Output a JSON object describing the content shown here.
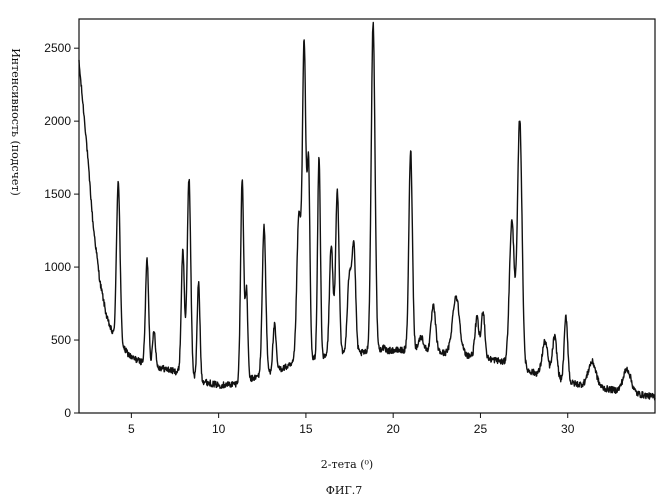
{
  "figure": {
    "caption": "ФИГ.7"
  },
  "chart_data": {
    "type": "line",
    "title": "",
    "xlabel": "2-тета (⁰)",
    "ylabel": "Интенсивность (подсчет)",
    "xlim": [
      2.0,
      35.0
    ],
    "ylim": [
      0,
      2700
    ],
    "grid": false,
    "legend": "none",
    "x_ticks": [
      5,
      10,
      15,
      20,
      25,
      30
    ],
    "y_ticks": [
      0,
      500,
      1000,
      1500,
      2000,
      2500
    ],
    "line_color": "#111111",
    "baseline": [
      [
        2.0,
        2400
      ],
      [
        2.4,
        1900
      ],
      [
        2.8,
        1300
      ],
      [
        3.2,
        900
      ],
      [
        3.6,
        650
      ],
      [
        4.0,
        520
      ],
      [
        5.0,
        380
      ],
      [
        6.0,
        330
      ],
      [
        7.0,
        300
      ],
      [
        8.0,
        270
      ],
      [
        9.0,
        220
      ],
      [
        10.0,
        190
      ],
      [
        11.0,
        200
      ],
      [
        12.0,
        240
      ],
      [
        13.0,
        280
      ],
      [
        14.0,
        320
      ],
      [
        15.0,
        360
      ],
      [
        16.0,
        380
      ],
      [
        17.0,
        400
      ],
      [
        18.0,
        410
      ],
      [
        19.0,
        420
      ],
      [
        20.0,
        430
      ],
      [
        21.0,
        430
      ],
      [
        22.0,
        420
      ],
      [
        23.0,
        410
      ],
      [
        24.0,
        400
      ],
      [
        25.0,
        380
      ],
      [
        26.0,
        360
      ],
      [
        27.0,
        320
      ],
      [
        28.0,
        280
      ],
      [
        29.0,
        240
      ],
      [
        30.0,
        210
      ],
      [
        31.0,
        190
      ],
      [
        32.0,
        170
      ],
      [
        33.0,
        150
      ],
      [
        34.0,
        130
      ],
      [
        35.0,
        110
      ]
    ],
    "peaks": [
      {
        "x": 4.25,
        "y": 1590,
        "w": 0.1
      },
      {
        "x": 5.9,
        "y": 1050,
        "w": 0.09
      },
      {
        "x": 6.3,
        "y": 570,
        "w": 0.08
      },
      {
        "x": 7.95,
        "y": 1110,
        "w": 0.09
      },
      {
        "x": 8.3,
        "y": 1610,
        "w": 0.1
      },
      {
        "x": 8.85,
        "y": 890,
        "w": 0.08
      },
      {
        "x": 11.35,
        "y": 1600,
        "w": 0.09
      },
      {
        "x": 11.6,
        "y": 830,
        "w": 0.07
      },
      {
        "x": 12.6,
        "y": 1280,
        "w": 0.1
      },
      {
        "x": 13.2,
        "y": 600,
        "w": 0.09
      },
      {
        "x": 14.6,
        "y": 1350,
        "w": 0.12
      },
      {
        "x": 14.9,
        "y": 2500,
        "w": 0.1
      },
      {
        "x": 15.15,
        "y": 1670,
        "w": 0.08
      },
      {
        "x": 15.75,
        "y": 1750,
        "w": 0.08
      },
      {
        "x": 16.45,
        "y": 1150,
        "w": 0.1
      },
      {
        "x": 16.8,
        "y": 1520,
        "w": 0.1
      },
      {
        "x": 17.5,
        "y": 950,
        "w": 0.12
      },
      {
        "x": 17.75,
        "y": 1110,
        "w": 0.1
      },
      {
        "x": 18.85,
        "y": 2670,
        "w": 0.11
      },
      {
        "x": 19.4,
        "y": 450,
        "w": 0.1
      },
      {
        "x": 21.0,
        "y": 1800,
        "w": 0.1
      },
      {
        "x": 21.6,
        "y": 520,
        "w": 0.15
      },
      {
        "x": 22.3,
        "y": 730,
        "w": 0.13
      },
      {
        "x": 23.6,
        "y": 800,
        "w": 0.2
      },
      {
        "x": 24.8,
        "y": 650,
        "w": 0.11
      },
      {
        "x": 25.15,
        "y": 700,
        "w": 0.1
      },
      {
        "x": 26.8,
        "y": 1310,
        "w": 0.14
      },
      {
        "x": 27.25,
        "y": 2010,
        "w": 0.13
      },
      {
        "x": 28.7,
        "y": 490,
        "w": 0.16
      },
      {
        "x": 29.25,
        "y": 520,
        "w": 0.13
      },
      {
        "x": 29.9,
        "y": 660,
        "w": 0.1
      },
      {
        "x": 31.4,
        "y": 350,
        "w": 0.22
      },
      {
        "x": 33.4,
        "y": 300,
        "w": 0.22
      }
    ],
    "noise_amplitude": 22,
    "sample_step": 0.02
  }
}
